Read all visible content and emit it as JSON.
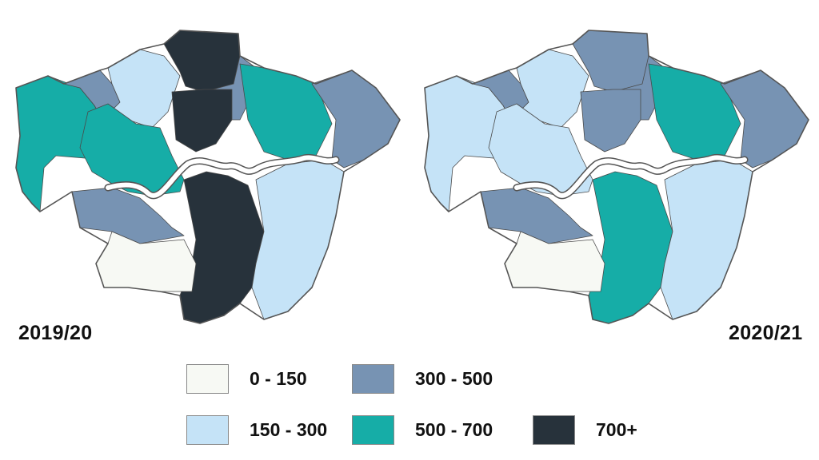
{
  "maps": [
    {
      "period": "2019/20",
      "fills": [
        "c500",
        "c300",
        "c150",
        "c300",
        "c500",
        "c700",
        "c700",
        "c500",
        "c300",
        "c300",
        "c700",
        "c150",
        "c0"
      ]
    },
    {
      "period": "2020/21",
      "fills": [
        "c150",
        "c300",
        "c150",
        "c300",
        "c150",
        "c300",
        "c300",
        "c500",
        "c300",
        "c300",
        "c500",
        "c150",
        "c0"
      ]
    }
  ],
  "colors": {
    "c0": "#f7f9f4",
    "c150": "#c5e3f7",
    "c300": "#7793b3",
    "c500": "#16ada7",
    "c700": "#27323b"
  },
  "legend": [
    {
      "label": "0 - 150",
      "color": "#f7f9f4"
    },
    {
      "label": "300 - 500",
      "color": "#7793b3"
    },
    {
      "label": "150 - 300",
      "color": "#c5e3f7"
    },
    {
      "label": "500 - 700",
      "color": "#16ada7"
    },
    {
      "label": "700+",
      "color": "#27323b"
    }
  ]
}
